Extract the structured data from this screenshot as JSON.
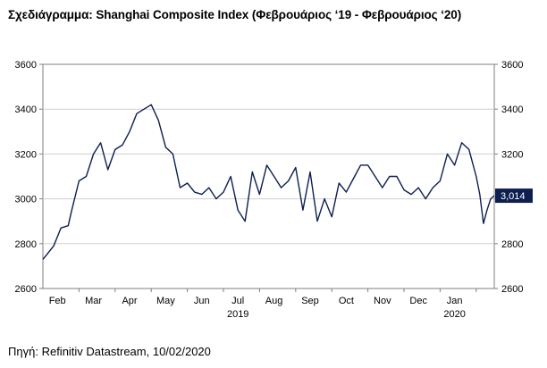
{
  "chart_data": {
    "type": "line",
    "title": "Σχεδιάγραμμα: Shanghai Composite Index (Φεβρουάριος ‘19 - Φεβρουάριος ‘20)",
    "ylim": [
      2600,
      3600
    ],
    "y_ticks": [
      2600,
      2800,
      3000,
      3200,
      3400,
      3600
    ],
    "y_tick_labels": [
      "2600",
      "2800",
      "3000",
      "3200",
      "3400",
      "3600"
    ],
    "x_tick_labels": [
      "Feb",
      "Mar",
      "Apr",
      "May",
      "Jun",
      "Jul",
      "Aug",
      "Sep",
      "Oct",
      "Nov",
      "Dec",
      "Jan"
    ],
    "year_labels": [
      {
        "label": "2019",
        "under": "Jul"
      },
      {
        "label": "2020",
        "under": "Jan"
      }
    ],
    "grid": true,
    "last_value_label": "3,014",
    "line_color": "#0d1f4f",
    "badge_color": "#0d1f4f",
    "series": [
      {
        "name": "Shanghai Composite Index",
        "x": [
          0,
          0.3,
          0.5,
          0.7,
          0.8,
          1,
          1.2,
          1.4,
          1.6,
          1.8,
          2,
          2.2,
          2.4,
          2.6,
          2.8,
          3,
          3.2,
          3.4,
          3.6,
          3.8,
          4,
          4.2,
          4.4,
          4.6,
          4.8,
          5,
          5.2,
          5.4,
          5.6,
          5.8,
          6,
          6.2,
          6.4,
          6.6,
          6.8,
          7,
          7.2,
          7.4,
          7.6,
          7.8,
          8,
          8.2,
          8.4,
          8.6,
          8.8,
          9,
          9.2,
          9.4,
          9.6,
          9.8,
          10,
          10.2,
          10.4,
          10.6,
          10.8,
          11,
          11.2,
          11.4,
          11.6,
          11.8,
          12,
          12.1,
          12.2,
          12.3,
          12.4,
          12.5
        ],
        "values": [
          2730,
          2790,
          2870,
          2880,
          2950,
          3080,
          3100,
          3200,
          3250,
          3130,
          3220,
          3240,
          3300,
          3380,
          3400,
          3420,
          3350,
          3230,
          3200,
          3050,
          3070,
          3030,
          3020,
          3050,
          3000,
          3030,
          3100,
          2950,
          2900,
          3120,
          3020,
          3150,
          3100,
          3050,
          3080,
          3140,
          2950,
          3120,
          2900,
          3000,
          2920,
          3070,
          3030,
          3090,
          3150,
          3150,
          3100,
          3050,
          3100,
          3100,
          3040,
          3020,
          3050,
          3000,
          3050,
          3080,
          3200,
          3150,
          3250,
          3220,
          3100,
          3020,
          2890,
          2950,
          3000,
          3014
        ]
      }
    ]
  },
  "source": "Πηγή: Refinitiv Datastream, 10/02/2020"
}
